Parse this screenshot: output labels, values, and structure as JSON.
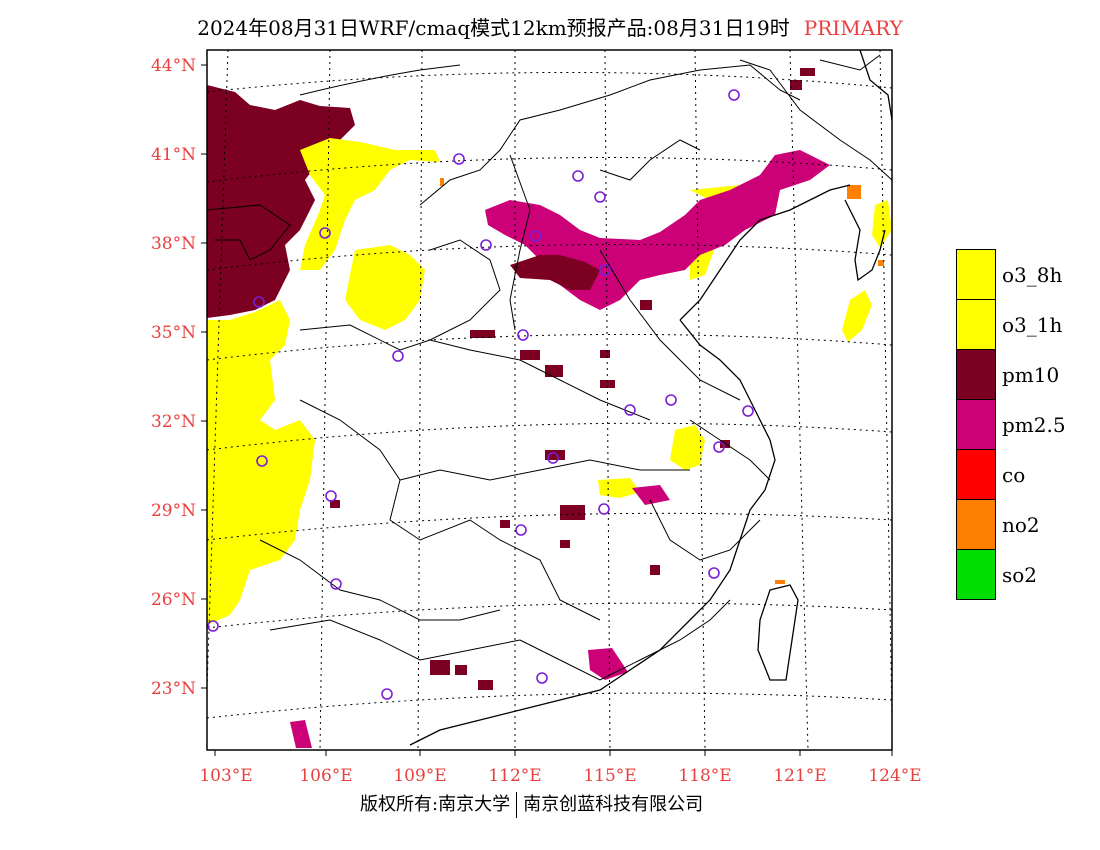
{
  "header": {
    "title": "2024年08月31日WRF/cmaq模式12km预报产品:08月31日19时",
    "tag": "PRIMARY"
  },
  "map": {
    "lat_labels": [
      "44°N",
      "41°N",
      "38°N",
      "35°N",
      "32°N",
      "29°N",
      "26°N",
      "23°N"
    ],
    "lon_labels": [
      "103°E",
      "106°E",
      "109°E",
      "112°E",
      "115°E",
      "118°E",
      "121°E",
      "124°E"
    ],
    "label_color": "#e8403e"
  },
  "legend": [
    {
      "label": "o3_8h",
      "color": "#ffff00"
    },
    {
      "label": "o3_1h",
      "color": "#ffff00"
    },
    {
      "label": "pm10",
      "color": "#7b0022"
    },
    {
      "label": "pm2.5",
      "color": "#cc0077"
    },
    {
      "label": "co",
      "color": "#ff0000"
    },
    {
      "label": "no2",
      "color": "#ff7f00"
    },
    {
      "label": "so2",
      "color": "#00dd00"
    }
  ],
  "footer": {
    "left": "版权所有:南京大学",
    "right": "南京创蓝科技有限公司"
  }
}
